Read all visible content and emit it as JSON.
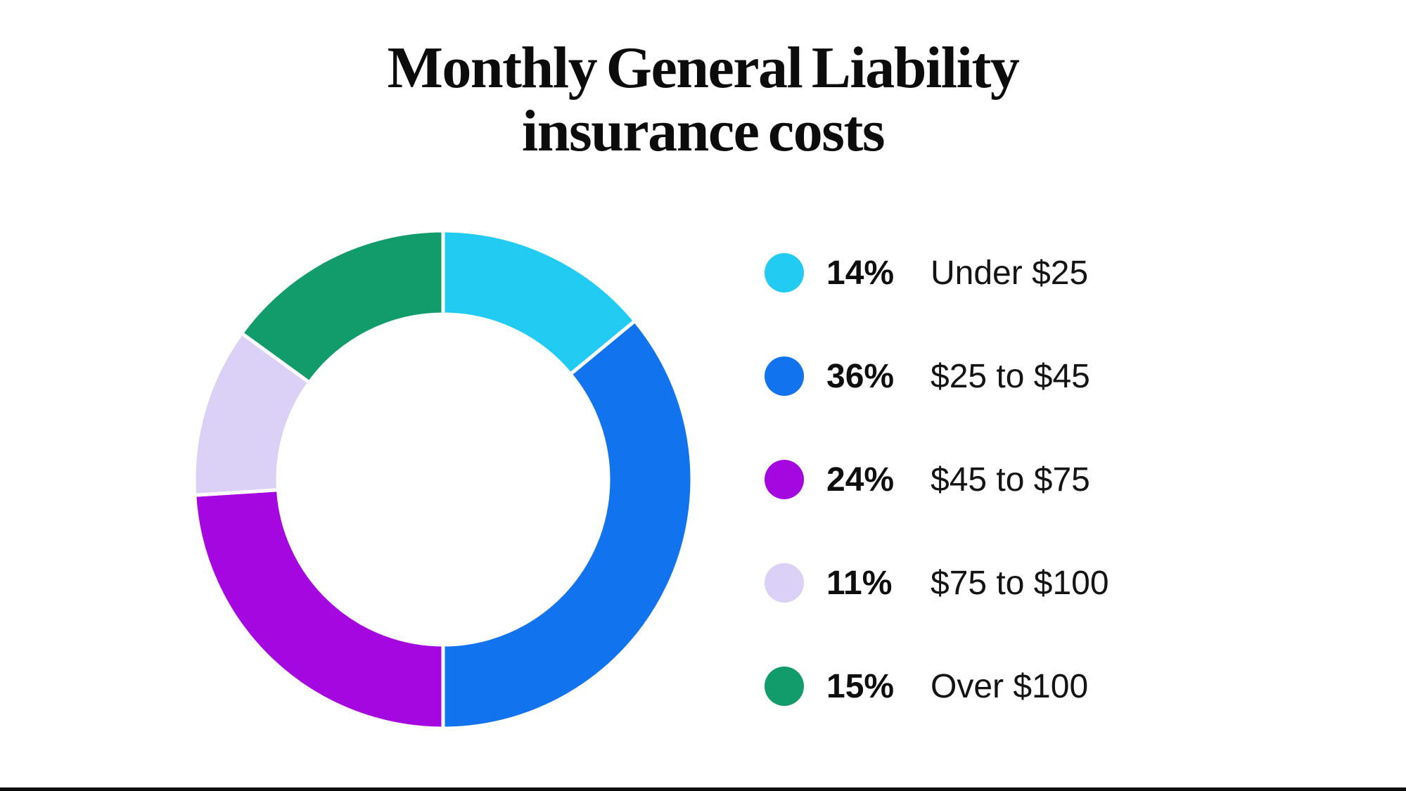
{
  "title_lines": [
    "Monthly General Liability",
    "insurance costs"
  ],
  "chart_data": {
    "type": "pie",
    "subtype": "donut",
    "title": "Monthly General Liability insurance costs",
    "start_angle_deg": 0,
    "direction": "clockwise",
    "inner_radius_ratio": 0.66,
    "separator_color": "#FFFFFF",
    "legend_position": "right",
    "segments": [
      {
        "label": "Under $25",
        "percent_label": "14%",
        "value": 14,
        "color": "#22CBF2"
      },
      {
        "label": "$25 to $45",
        "percent_label": "36%",
        "value": 36,
        "color": "#1173EE"
      },
      {
        "label": "$45 to $75",
        "percent_label": "24%",
        "value": 24,
        "color": "#A507E0"
      },
      {
        "label": "$75 to $100",
        "percent_label": "11%",
        "value": 11,
        "color": "#DBD0F6"
      },
      {
        "label": "Over $100",
        "percent_label": "15%",
        "value": 15,
        "color": "#129C6B"
      }
    ]
  },
  "footer_bar_color": "#0C0C0C",
  "text_color": "#101010",
  "background_color": "#FFFFFF"
}
